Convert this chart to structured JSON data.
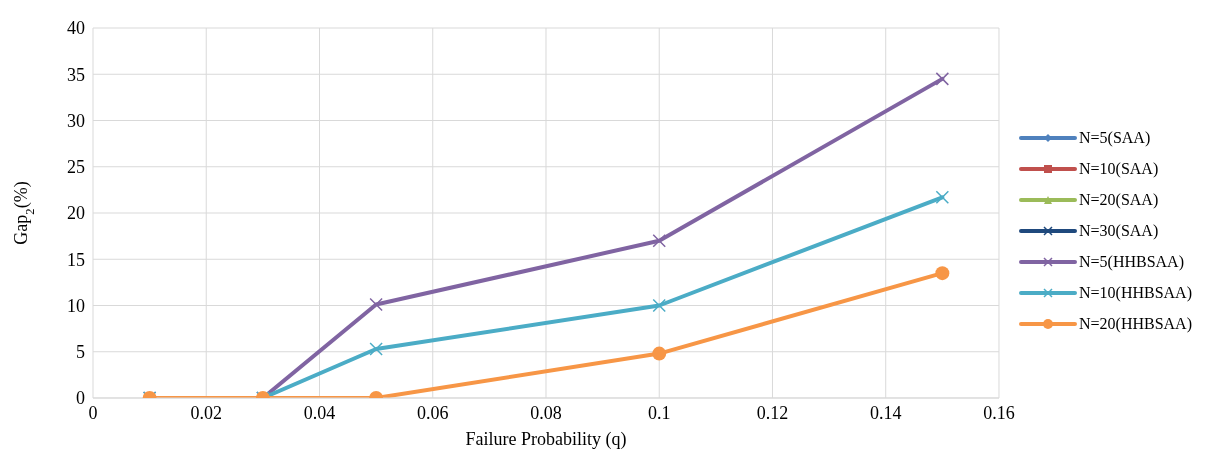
{
  "chart_data": {
    "type": "line",
    "xlabel": "Failure Probability (q)",
    "ylabel": "Gap$_{2}$(%)",
    "x": [
      0.01,
      0.03,
      0.05,
      0.1,
      0.15
    ],
    "xlim": [
      0,
      0.16
    ],
    "xticks": [
      0,
      0.02,
      0.04,
      0.06,
      0.08,
      0.1,
      0.12,
      0.14,
      0.16
    ],
    "ylim": [
      0,
      40
    ],
    "yticks": [
      0,
      5,
      10,
      15,
      20,
      25,
      30,
      35,
      40
    ],
    "grid": true,
    "legend": "right",
    "line_style": "solid",
    "series": [
      {
        "name": "N=5(SAA)",
        "color": "#4f81bd",
        "marker": "diamond",
        "values": [
          null,
          null,
          null,
          null,
          null
        ]
      },
      {
        "name": "N=10(SAA)",
        "color": "#c0504d",
        "marker": "square",
        "values": [
          null,
          null,
          null,
          null,
          null
        ]
      },
      {
        "name": "N=20(SAA)",
        "color": "#9bbb59",
        "marker": "triangle",
        "values": [
          null,
          null,
          null,
          null,
          null
        ]
      },
      {
        "name": "N=30(SAA)",
        "color": "#1f497d",
        "marker": "cross",
        "values": [
          null,
          null,
          null,
          null,
          null
        ]
      },
      {
        "name": "N=5(HHBSAA)",
        "color": "#8064a2",
        "marker": "cross",
        "values": [
          0,
          0,
          10.1,
          17,
          34.5
        ]
      },
      {
        "name": "N=10(HHBSAA)",
        "color": "#4bacc6",
        "marker": "cross",
        "values": [
          0,
          0,
          5.3,
          10,
          21.7
        ]
      },
      {
        "name": "N=20(HHBSAA)",
        "color": "#f79646",
        "marker": "circle",
        "values": [
          0,
          0,
          0,
          4.8,
          13.5
        ]
      }
    ]
  }
}
